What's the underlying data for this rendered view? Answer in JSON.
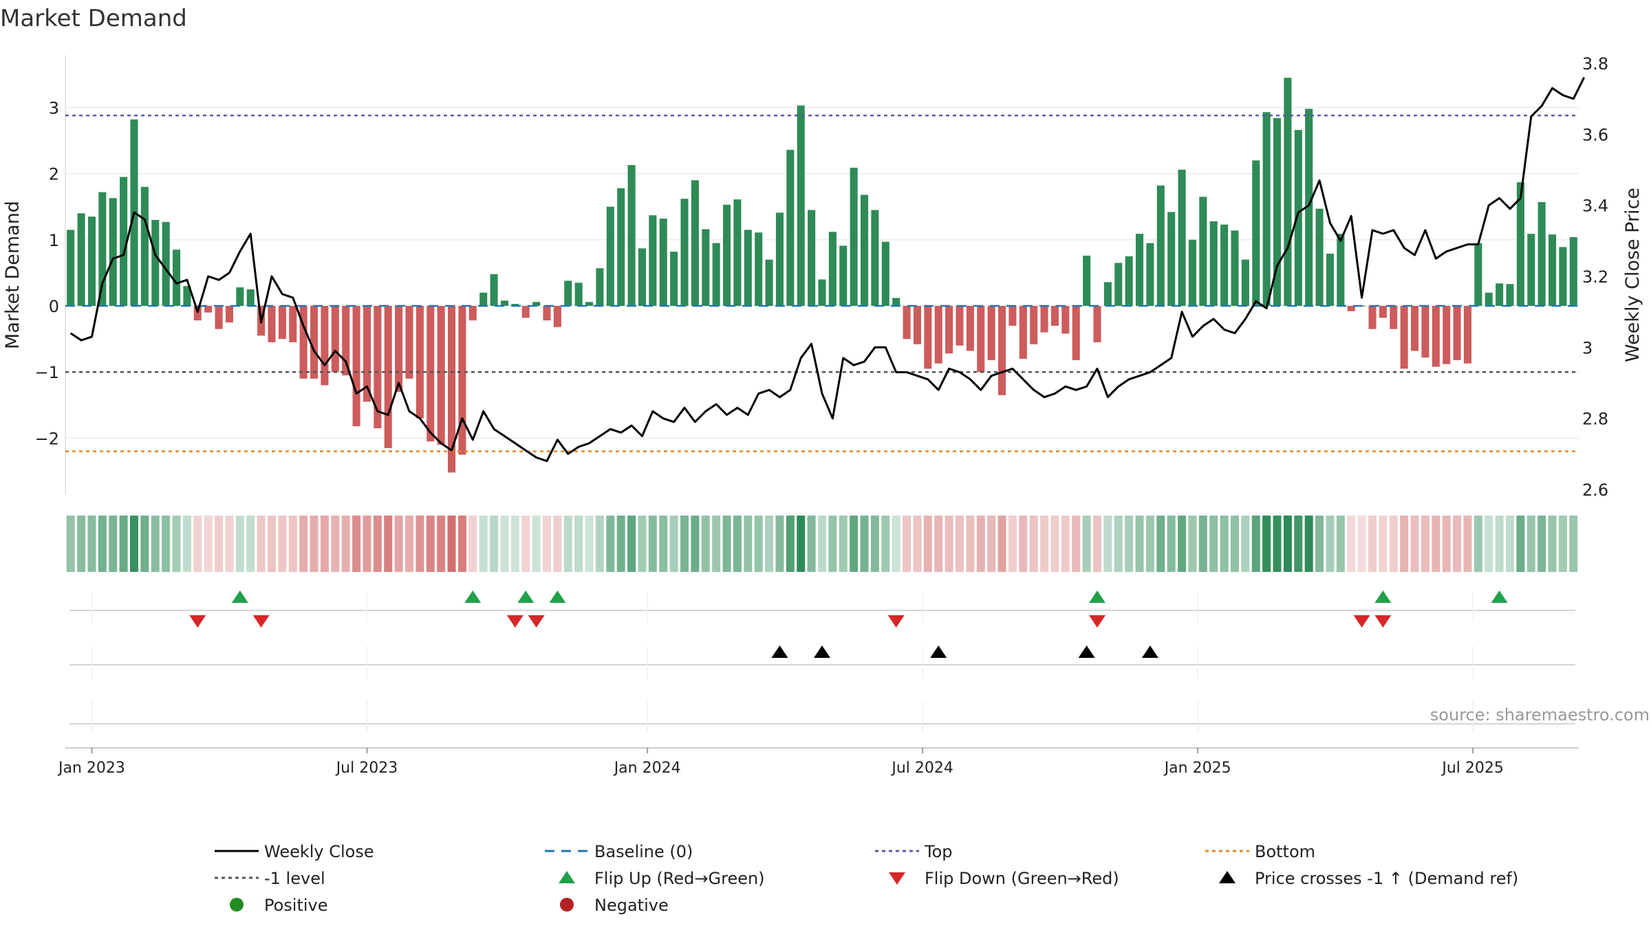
{
  "chart_data": {
    "type": "bar",
    "title": "Market Demand",
    "ylabel_left": "Market Demand",
    "ylabel_right": "Weekly Close Price",
    "source": "source: sharemaestro.com",
    "x_tick_labels": [
      "Jan 2023",
      "Jul 2023",
      "Jan 2024",
      "Jul 2024",
      "Jan 2025",
      "Jul 2025"
    ],
    "x_tick_weeks": [
      2,
      28,
      54.5,
      80.5,
      106.5,
      132.5
    ],
    "left_axis": {
      "ylim": [
        -2.9,
        3.8
      ],
      "ticks": [
        -2,
        -1,
        0,
        1,
        2,
        3
      ],
      "tick_labels": [
        "−2",
        "−1",
        "0",
        "1",
        "2",
        "3"
      ]
    },
    "right_axis": {
      "ylim": [
        2.6,
        3.8
      ],
      "ticks": [
        2.6,
        2.8,
        3.0,
        3.2,
        3.4,
        3.6,
        3.8
      ],
      "tick_labels": [
        "2.6",
        "2.8",
        "3",
        "3.2",
        "3.4",
        "3.6",
        "3.8"
      ]
    },
    "reference_lines": {
      "top": 2.88,
      "minus_one": -1.0,
      "bottom": -2.2
    },
    "demand": [
      1.15,
      1.4,
      1.35,
      1.72,
      1.63,
      1.95,
      2.82,
      1.8,
      1.3,
      1.27,
      0.85,
      0.3,
      -0.22,
      -0.1,
      -0.35,
      -0.25,
      0.28,
      0.25,
      -0.45,
      -0.55,
      -0.5,
      -0.55,
      -1.1,
      -1.1,
      -1.2,
      -1.0,
      -1.05,
      -1.82,
      -1.45,
      -1.85,
      -2.15,
      -1.3,
      -1.1,
      -1.7,
      -2.05,
      -2.1,
      -2.52,
      -2.25,
      -0.22,
      0.2,
      0.48,
      0.08,
      0.03,
      -0.18,
      0.06,
      -0.22,
      -0.32,
      0.38,
      0.35,
      0.06,
      0.57,
      1.5,
      1.78,
      2.13,
      0.87,
      1.37,
      1.32,
      0.82,
      1.62,
      1.9,
      1.16,
      0.95,
      1.53,
      1.61,
      1.15,
      1.11,
      0.7,
      1.41,
      2.36,
      3.03,
      1.45,
      0.4,
      1.12,
      0.91,
      2.09,
      1.68,
      1.45,
      0.97,
      0.12,
      -0.5,
      -0.58,
      -0.95,
      -0.87,
      -0.72,
      -0.6,
      -0.68,
      -1.0,
      -0.82,
      -1.35,
      -0.3,
      -0.8,
      -0.58,
      -0.4,
      -0.3,
      -0.42,
      -0.82,
      0.76,
      -0.55,
      0.36,
      0.65,
      0.75,
      1.09,
      0.95,
      1.82,
      1.42,
      2.06,
      1.0,
      1.65,
      1.28,
      1.23,
      1.14,
      0.7,
      2.2,
      2.93,
      2.84,
      3.45,
      2.66,
      2.98,
      1.47,
      0.79,
      1.09,
      -0.08,
      -0.01,
      -0.35,
      -0.18,
      -0.35,
      -0.95,
      -0.68,
      -0.78,
      -0.92,
      -0.88,
      -0.82,
      -0.87,
      0.95,
      0.2,
      0.34,
      0.33,
      1.87,
      1.09,
      1.57,
      1.08,
      0.89,
      1.04
    ],
    "weekly_close": [
      3.04,
      3.02,
      3.03,
      3.18,
      3.25,
      3.26,
      3.38,
      3.36,
      3.26,
      3.22,
      3.18,
      3.19,
      3.1,
      3.2,
      3.19,
      3.21,
      3.27,
      3.32,
      3.07,
      3.2,
      3.15,
      3.14,
      3.06,
      2.99,
      2.95,
      2.99,
      2.96,
      2.87,
      2.89,
      2.82,
      2.81,
      2.9,
      2.82,
      2.8,
      2.76,
      2.73,
      2.71,
      2.8,
      2.74,
      2.82,
      2.77,
      2.75,
      2.73,
      2.71,
      2.69,
      2.68,
      2.74,
      2.7,
      2.72,
      2.73,
      2.75,
      2.77,
      2.76,
      2.78,
      2.75,
      2.82,
      2.8,
      2.79,
      2.83,
      2.79,
      2.82,
      2.84,
      2.81,
      2.83,
      2.81,
      2.87,
      2.88,
      2.86,
      2.88,
      2.97,
      3.01,
      2.87,
      2.8,
      2.97,
      2.95,
      2.96,
      3.0,
      3.0,
      2.93,
      2.93,
      2.92,
      2.91,
      2.88,
      2.94,
      2.93,
      2.91,
      2.88,
      2.92,
      2.93,
      2.94,
      2.91,
      2.88,
      2.86,
      2.87,
      2.89,
      2.88,
      2.89,
      2.94,
      2.86,
      2.89,
      2.91,
      2.92,
      2.93,
      2.95,
      2.97,
      3.1,
      3.03,
      3.06,
      3.08,
      3.05,
      3.04,
      3.08,
      3.13,
      3.11,
      3.23,
      3.28,
      3.38,
      3.4,
      3.47,
      3.35,
      3.3,
      3.37,
      3.14,
      3.33,
      3.32,
      3.33,
      3.28,
      3.26,
      3.33,
      3.25,
      3.27,
      3.28,
      3.29,
      3.29,
      3.4,
      3.42,
      3.39,
      3.42,
      3.65,
      3.68,
      3.73,
      3.71,
      3.7,
      3.76
    ],
    "flip_up_weeks": [
      16,
      38,
      43,
      46,
      97,
      124,
      135
    ],
    "flip_down_weeks": [
      12,
      18,
      42,
      44,
      78,
      97,
      122,
      124
    ],
    "price_cross_weeks": [
      67,
      71,
      82,
      96,
      102
    ],
    "legend": [
      {
        "label": "Weekly Close",
        "symbol": "line-solid"
      },
      {
        "label": "Baseline (0)",
        "symbol": "line-dashed"
      },
      {
        "label": "Top",
        "symbol": "line-dotted-purple"
      },
      {
        "label": "Bottom",
        "symbol": "line-dotted-orange"
      },
      {
        "label": "-1 level",
        "symbol": "line-dotted-gray"
      },
      {
        "label": "Flip Up (Red→Green)",
        "symbol": "triangle-up-green"
      },
      {
        "label": "Flip Down (Green→Red)",
        "symbol": "triangle-down-red"
      },
      {
        "label": "Price crosses -1 ↑ (Demand ref)",
        "symbol": "triangle-up-black"
      },
      {
        "label": "Positive",
        "symbol": "dot-green"
      },
      {
        "label": "Negative",
        "symbol": "dot-red"
      }
    ]
  },
  "colors": {
    "positive_bar": "#2e8b57",
    "negative_bar": "#cd5c5c",
    "price_line": "#000000",
    "baseline": "#1f77b4",
    "top_line": "#5a5aa8",
    "bottom_line": "#e08a1e",
    "minus_one_line": "#555555",
    "flip_up": "#22a04b",
    "flip_down": "#d62728",
    "cross_marker": "#000000",
    "positive_dot": "#228b22",
    "negative_dot": "#b22222"
  }
}
